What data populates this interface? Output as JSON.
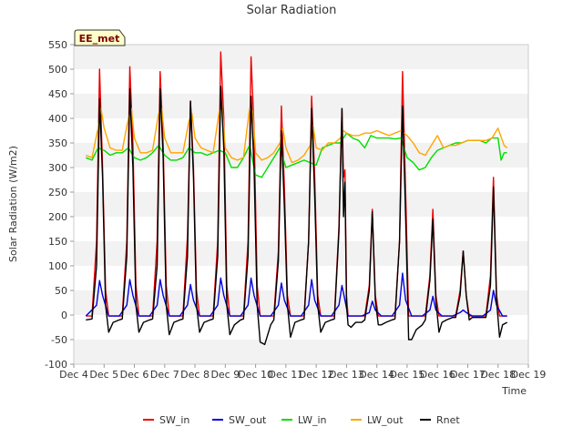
{
  "chart_data": {
    "type": "line",
    "title": "Solar Radiation",
    "xlabel": "Time",
    "ylabel": "Solar Radiation (W/m2)",
    "site_badge": "EE_met",
    "xlim": [
      4,
      19
    ],
    "ylim": [
      -100,
      550
    ],
    "x_ticks": [
      4,
      5,
      6,
      7,
      8,
      9,
      10,
      11,
      12,
      13,
      14,
      15,
      16,
      17,
      18,
      19
    ],
    "x_tick_labels": [
      "Dec 4",
      "Dec 5",
      "Dec 6",
      "Dec 7",
      "Dec 8",
      "Dec 9",
      "Dec 10",
      "Dec 11",
      "Dec 12",
      "Dec 13",
      "Dec 14",
      "Dec 15",
      "Dec 16",
      "Dec 17",
      "Dec 18",
      "Dec 19"
    ],
    "y_ticks": [
      -100,
      -50,
      0,
      50,
      100,
      150,
      200,
      250,
      300,
      350,
      400,
      450,
      500,
      550
    ],
    "y_tick_labels": [
      "-100",
      "-50",
      "0",
      "50",
      "100",
      "150",
      "200",
      "250",
      "300",
      "350",
      "400",
      "450",
      "500",
      "550"
    ],
    "grid": "horizontal-bands",
    "legend_position": "bottom",
    "series": [
      {
        "name": "SW_in",
        "color": "#ee0000",
        "x": [
          4.4,
          4.6,
          4.75,
          4.85,
          4.95,
          5.05,
          5.15,
          5.3,
          5.5,
          5.6,
          5.75,
          5.85,
          5.95,
          6.05,
          6.15,
          6.3,
          6.5,
          6.6,
          6.75,
          6.85,
          6.95,
          7.05,
          7.15,
          7.3,
          7.5,
          7.6,
          7.75,
          7.85,
          7.95,
          8.05,
          8.15,
          8.3,
          8.5,
          8.6,
          8.75,
          8.85,
          8.95,
          9.05,
          9.15,
          9.3,
          9.5,
          9.6,
          9.75,
          9.85,
          9.95,
          10.05,
          10.15,
          10.3,
          10.5,
          10.6,
          10.75,
          10.85,
          10.95,
          11.05,
          11.15,
          11.3,
          11.5,
          11.6,
          11.75,
          11.85,
          11.95,
          12.05,
          12.15,
          12.3,
          12.5,
          12.6,
          12.75,
          12.85,
          12.9,
          12.95,
          13.0,
          13.05,
          13.15,
          13.3,
          13.5,
          13.6,
          13.75,
          13.85,
          13.95,
          14.05,
          14.15,
          14.3,
          14.5,
          14.6,
          14.75,
          14.85,
          14.95,
          15.05,
          15.15,
          15.3,
          15.5,
          15.6,
          15.75,
          15.85,
          15.95,
          16.05,
          16.15,
          16.3,
          16.5,
          16.6,
          16.75,
          16.85,
          16.95,
          17.05,
          17.15,
          17.3,
          17.5,
          17.6,
          17.75,
          17.85,
          17.95,
          18.05,
          18.15,
          18.3
        ],
        "y": [
          -2,
          -2,
          150,
          500,
          300,
          50,
          -2,
          -2,
          -2,
          -2,
          150,
          505,
          350,
          60,
          -2,
          -2,
          -2,
          -2,
          150,
          495,
          350,
          60,
          -2,
          -2,
          -2,
          -2,
          160,
          435,
          300,
          50,
          -2,
          -2,
          -2,
          -2,
          150,
          535,
          400,
          60,
          -2,
          -2,
          -2,
          -2,
          150,
          525,
          380,
          60,
          -2,
          -2,
          -2,
          -2,
          130,
          425,
          260,
          40,
          -2,
          -2,
          -2,
          -2,
          150,
          445,
          280,
          40,
          -2,
          -2,
          -2,
          -2,
          180,
          420,
          280,
          295,
          40,
          -2,
          -2,
          -2,
          -2,
          -2,
          60,
          215,
          40,
          -2,
          -2,
          -2,
          -2,
          -2,
          150,
          495,
          250,
          -2,
          -2,
          -2,
          -2,
          -2,
          80,
          215,
          40,
          -2,
          -2,
          -2,
          -2,
          -2,
          50,
          130,
          40,
          -2,
          -2,
          -2,
          -2,
          -2,
          80,
          280,
          40,
          -2,
          -2,
          -2
        ]
      },
      {
        "name": "SW_out",
        "color": "#0000dd",
        "x": [
          4.4,
          4.75,
          4.85,
          4.95,
          5.15,
          5.5,
          5.75,
          5.85,
          5.95,
          6.15,
          6.5,
          6.75,
          6.85,
          6.95,
          7.15,
          7.5,
          7.75,
          7.85,
          7.95,
          8.15,
          8.5,
          8.75,
          8.85,
          8.95,
          9.15,
          9.5,
          9.75,
          9.85,
          9.95,
          10.15,
          10.5,
          10.75,
          10.85,
          10.95,
          11.15,
          11.5,
          11.75,
          11.85,
          11.95,
          12.15,
          12.5,
          12.75,
          12.85,
          12.95,
          13.05,
          13.5,
          13.75,
          13.85,
          13.95,
          14.15,
          14.5,
          14.75,
          14.85,
          14.95,
          15.15,
          15.5,
          15.75,
          15.85,
          15.95,
          16.15,
          16.5,
          16.75,
          16.85,
          16.95,
          17.15,
          17.5,
          17.75,
          17.85,
          17.95,
          18.15,
          18.3
        ],
        "y": [
          -2,
          20,
          70,
          40,
          -2,
          -2,
          20,
          72,
          40,
          -2,
          -2,
          20,
          72,
          40,
          -2,
          -2,
          20,
          62,
          30,
          -2,
          -2,
          20,
          75,
          40,
          -2,
          -2,
          20,
          75,
          40,
          -2,
          -2,
          20,
          65,
          30,
          -2,
          -2,
          20,
          72,
          30,
          -2,
          -2,
          20,
          60,
          30,
          -2,
          -2,
          5,
          28,
          10,
          -2,
          -2,
          20,
          85,
          30,
          -2,
          -2,
          10,
          38,
          10,
          -2,
          -2,
          5,
          10,
          5,
          -2,
          -2,
          10,
          50,
          20,
          -2,
          -2
        ]
      },
      {
        "name": "LW_in",
        "color": "#00dd00",
        "x": [
          4.4,
          4.6,
          4.8,
          5.0,
          5.2,
          5.4,
          5.6,
          5.8,
          6.0,
          6.2,
          6.4,
          6.6,
          6.8,
          7.0,
          7.2,
          7.4,
          7.6,
          7.8,
          8.0,
          8.2,
          8.4,
          8.6,
          8.8,
          9.0,
          9.2,
          9.4,
          9.6,
          9.8,
          10.0,
          10.2,
          10.4,
          10.6,
          10.8,
          11.0,
          11.2,
          11.4,
          11.6,
          11.8,
          12.0,
          12.2,
          12.4,
          12.6,
          12.8,
          13.0,
          13.2,
          13.4,
          13.6,
          13.8,
          14.0,
          14.2,
          14.4,
          14.6,
          14.8,
          15.0,
          15.2,
          15.4,
          15.6,
          15.8,
          16.0,
          16.2,
          16.4,
          16.6,
          16.8,
          17.0,
          17.2,
          17.4,
          17.6,
          17.8,
          18.0,
          18.1,
          18.2,
          18.3
        ],
        "y": [
          320,
          315,
          340,
          335,
          325,
          330,
          330,
          340,
          320,
          315,
          320,
          330,
          345,
          325,
          315,
          315,
          320,
          340,
          330,
          330,
          325,
          330,
          335,
          330,
          300,
          300,
          320,
          345,
          285,
          280,
          300,
          320,
          340,
          300,
          305,
          310,
          315,
          310,
          305,
          340,
          345,
          350,
          350,
          370,
          360,
          355,
          340,
          365,
          360,
          360,
          360,
          358,
          360,
          320,
          310,
          295,
          300,
          320,
          335,
          340,
          345,
          350,
          350,
          355,
          355,
          355,
          350,
          360,
          360,
          315,
          330,
          330
        ]
      },
      {
        "name": "LW_out",
        "color": "#ffa500",
        "x": [
          4.4,
          4.6,
          4.8,
          4.9,
          5.0,
          5.2,
          5.4,
          5.6,
          5.8,
          5.9,
          6.0,
          6.2,
          6.4,
          6.6,
          6.8,
          6.9,
          7.0,
          7.2,
          7.4,
          7.6,
          7.8,
          7.9,
          8.0,
          8.2,
          8.4,
          8.6,
          8.8,
          8.9,
          9.0,
          9.2,
          9.4,
          9.6,
          9.8,
          9.9,
          10.0,
          10.2,
          10.4,
          10.6,
          10.8,
          10.9,
          11.0,
          11.2,
          11.4,
          11.6,
          11.8,
          11.9,
          12.0,
          12.2,
          12.4,
          12.6,
          12.8,
          12.9,
          13.0,
          13.2,
          13.4,
          13.6,
          13.8,
          14.0,
          14.2,
          14.4,
          14.6,
          14.8,
          15.0,
          15.2,
          15.4,
          15.6,
          15.8,
          16.0,
          16.2,
          16.4,
          16.6,
          16.8,
          17.0,
          17.2,
          17.4,
          17.6,
          17.8,
          18.0,
          18.2,
          18.3
        ],
        "y": [
          325,
          320,
          380,
          420,
          380,
          340,
          335,
          335,
          400,
          420,
          360,
          330,
          330,
          335,
          410,
          420,
          360,
          330,
          330,
          330,
          395,
          410,
          360,
          340,
          335,
          330,
          415,
          420,
          340,
          320,
          315,
          320,
          420,
          415,
          330,
          315,
          320,
          330,
          350,
          380,
          340,
          310,
          315,
          325,
          345,
          385,
          340,
          335,
          350,
          350,
          360,
          375,
          370,
          365,
          365,
          370,
          370,
          375,
          370,
          365,
          370,
          375,
          365,
          350,
          330,
          325,
          345,
          365,
          340,
          345,
          345,
          350,
          355,
          355,
          355,
          355,
          360,
          380,
          345,
          340
        ]
      },
      {
        "name": "Rnet",
        "color": "#000000",
        "x": [
          4.4,
          4.6,
          4.75,
          4.85,
          4.95,
          5.05,
          5.15,
          5.3,
          5.5,
          5.6,
          5.75,
          5.85,
          5.95,
          6.05,
          6.15,
          6.3,
          6.5,
          6.6,
          6.75,
          6.85,
          6.95,
          7.05,
          7.15,
          7.3,
          7.5,
          7.6,
          7.75,
          7.85,
          7.95,
          8.05,
          8.15,
          8.3,
          8.5,
          8.6,
          8.75,
          8.85,
          8.95,
          9.05,
          9.15,
          9.3,
          9.5,
          9.6,
          9.75,
          9.85,
          9.95,
          10.05,
          10.15,
          10.3,
          10.5,
          10.6,
          10.75,
          10.85,
          10.95,
          11.05,
          11.15,
          11.3,
          11.5,
          11.6,
          11.75,
          11.85,
          11.95,
          12.05,
          12.15,
          12.3,
          12.5,
          12.6,
          12.75,
          12.85,
          12.9,
          12.95,
          13.0,
          13.05,
          13.15,
          13.3,
          13.5,
          13.6,
          13.75,
          13.85,
          13.95,
          14.05,
          14.15,
          14.3,
          14.5,
          14.6,
          14.75,
          14.85,
          14.95,
          15.05,
          15.15,
          15.3,
          15.5,
          15.6,
          15.75,
          15.85,
          15.95,
          16.05,
          16.15,
          16.3,
          16.5,
          16.6,
          16.75,
          16.85,
          16.95,
          17.05,
          17.15,
          17.3,
          17.5,
          17.6,
          17.75,
          17.85,
          17.95,
          18.05,
          18.15,
          18.3
        ],
        "y": [
          -10,
          -8,
          100,
          440,
          280,
          20,
          -35,
          -15,
          -10,
          -8,
          120,
          460,
          300,
          20,
          -35,
          -15,
          -10,
          -8,
          100,
          460,
          320,
          20,
          -40,
          -15,
          -10,
          -8,
          120,
          435,
          280,
          20,
          -35,
          -15,
          -10,
          -8,
          120,
          465,
          340,
          20,
          -40,
          -20,
          -10,
          -8,
          120,
          445,
          300,
          20,
          -55,
          -60,
          -20,
          -10,
          110,
          375,
          220,
          20,
          -45,
          -15,
          -10,
          -8,
          150,
          420,
          240,
          20,
          -35,
          -15,
          -10,
          -8,
          170,
          420,
          200,
          270,
          20,
          -20,
          -25,
          -15,
          -15,
          -10,
          50,
          210,
          30,
          -20,
          -20,
          -15,
          -10,
          -8,
          150,
          425,
          200,
          -50,
          -50,
          -30,
          -20,
          -10,
          70,
          195,
          30,
          -35,
          -15,
          -10,
          -5,
          -5,
          40,
          130,
          40,
          -10,
          -5,
          -5,
          -5,
          -5,
          60,
          260,
          30,
          -45,
          -20,
          -15
        ]
      }
    ]
  }
}
